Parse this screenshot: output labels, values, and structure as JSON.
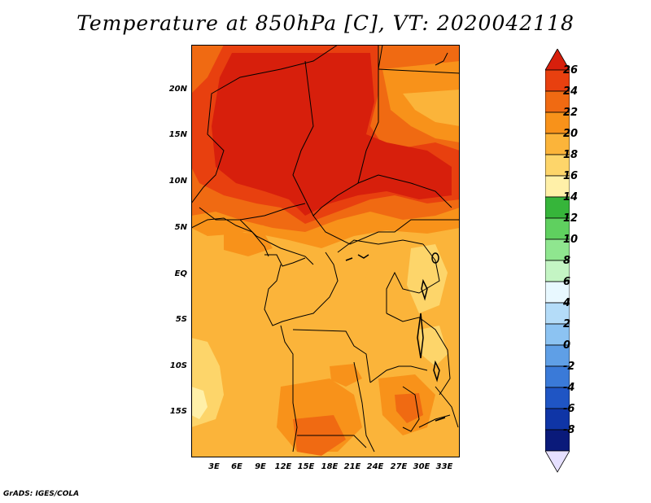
{
  "title": "Temperature at 850hPa [C], VT: 2020042118",
  "credit": "GrADS: IGES/COLA",
  "map": {
    "variable": "Temperature at 850hPa",
    "units": "C",
    "valid_time": "2020042118",
    "lat_labels": [
      "20N",
      "15N",
      "10N",
      "5N",
      "EQ",
      "5S",
      "10S",
      "15S"
    ],
    "lon_labels": [
      "3E",
      "6E",
      "9E",
      "12E",
      "15E",
      "18E",
      "21E",
      "24E",
      "27E",
      "30E",
      "33E"
    ]
  },
  "colorbar": {
    "labels": [
      "26",
      "24",
      "22",
      "20",
      "18",
      "16",
      "14",
      "12",
      "10",
      "8",
      "6",
      "4",
      "2",
      "0",
      "-2",
      "-4",
      "-6",
      "-8"
    ],
    "colors": [
      "#d71f0c",
      "#e8400f",
      "#f06a12",
      "#f8921a",
      "#fbb43a",
      "#fdd56a",
      "#fff0a8",
      "#36b53a",
      "#5fd05f",
      "#8fe68f",
      "#c4f5c4",
      "#e8f8ff",
      "#b4dcf8",
      "#8cc3f2",
      "#5f9fe6",
      "#3a7ad8",
      "#1f55c4",
      "#0f35a6",
      "#0a1a7a",
      "#e6e0ff"
    ]
  }
}
